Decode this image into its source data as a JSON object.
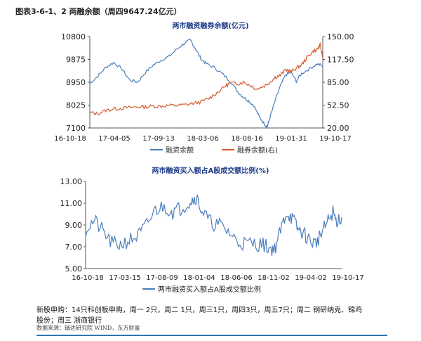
{
  "figure": {
    "caption": "图表3-6-1、2 两融余额（周四9647.24亿元）"
  },
  "chart_data": [
    {
      "type": "line",
      "title": "两市融资融券余额(亿元)",
      "x_ticks": [
        "16-10-18",
        "17-04-05",
        "17-09-13",
        "18-03-06",
        "18-08-16",
        "19-01-31",
        "19-10-17"
      ],
      "y_left": {
        "ticks": [
          7100,
          8025,
          8950,
          9875,
          10800
        ],
        "lim": [
          7100,
          10800
        ]
      },
      "y_right": {
        "ticks": [
          "20.00",
          "52.50",
          "85.00",
          "117.50",
          "150.00"
        ],
        "lim": [
          20,
          150
        ]
      },
      "grid": false,
      "legend": "bottom",
      "series": [
        {
          "name": "融资余额",
          "axis": "left",
          "color": "#4a7ebb",
          "points": [
            [
              0,
              8900
            ],
            [
              3,
              9200
            ],
            [
              6,
              9550
            ],
            [
              9,
              9750
            ],
            [
              12,
              9500
            ],
            [
              15,
              9050
            ],
            [
              18,
              8950
            ],
            [
              21,
              9350
            ],
            [
              24,
              9650
            ],
            [
              27,
              9850
            ],
            [
              30,
              10000
            ],
            [
              33,
              10300
            ],
            [
              36,
              10550
            ],
            [
              38,
              10650
            ],
            [
              40,
              10300
            ],
            [
              42,
              9900
            ],
            [
              44,
              9700
            ],
            [
              47,
              9550
            ],
            [
              50,
              9300
            ],
            [
              53,
              9000
            ],
            [
              56,
              8550
            ],
            [
              58,
              8350
            ],
            [
              60,
              8200
            ],
            [
              62,
              8000
            ],
            [
              64,
              7550
            ],
            [
              66,
              7250
            ],
            [
              67,
              7150
            ],
            [
              68,
              7500
            ],
            [
              70,
              8200
            ],
            [
              72,
              8800
            ],
            [
              74,
              9250
            ],
            [
              76,
              9350
            ],
            [
              78,
              9000
            ],
            [
              80,
              9300
            ],
            [
              83,
              9500
            ],
            [
              86,
              9700
            ],
            [
              88,
              9600
            ]
          ]
        },
        {
          "name": "融券余额(右)",
          "axis": "right",
          "color": "#d55a2b",
          "points": [
            [
              0,
              42
            ],
            [
              3,
              40
            ],
            [
              6,
              45
            ],
            [
              9,
              47
            ],
            [
              12,
              48
            ],
            [
              15,
              49
            ],
            [
              18,
              50
            ],
            [
              21,
              50
            ],
            [
              24,
              51
            ],
            [
              27,
              51
            ],
            [
              30,
              52
            ],
            [
              33,
              52
            ],
            [
              36,
              53
            ],
            [
              39,
              55
            ],
            [
              42,
              57
            ],
            [
              45,
              62
            ],
            [
              48,
              70
            ],
            [
              51,
              79
            ],
            [
              53,
              84
            ],
            [
              56,
              83
            ],
            [
              58,
              85
            ],
            [
              61,
              80
            ],
            [
              63,
              75
            ],
            [
              66,
              80
            ],
            [
              68,
              85
            ],
            [
              70,
              92
            ],
            [
              72,
              95
            ],
            [
              74,
              103
            ],
            [
              76,
              100
            ],
            [
              78,
              105
            ],
            [
              80,
              110
            ],
            [
              82,
              120
            ],
            [
              84,
              128
            ],
            [
              86,
              132
            ],
            [
              87,
              138
            ],
            [
              88,
              120
            ]
          ]
        }
      ]
    },
    {
      "type": "line",
      "title": "两市融资买入额占A股成交额比例(%)",
      "x_ticks": [
        "16-10-18",
        "17-03-15",
        "17-08-09",
        "18-01-04",
        "18-06-06",
        "18-11-02",
        "19-04-02",
        "19-10-17"
      ],
      "y": {
        "ticks": [
          "5.00",
          "7.00",
          "9.00",
          "11.00",
          "13.00"
        ],
        "lim": [
          5,
          13
        ]
      },
      "grid": false,
      "legend": "bottom",
      "series": [
        {
          "name": "两市融资买入额占A股成交额比例",
          "color": "#4a7ebb",
          "points": [
            [
              0,
              8.6
            ],
            [
              3,
              9.4
            ],
            [
              6,
              8.4
            ],
            [
              9,
              7.3
            ],
            [
              12,
              7.2
            ],
            [
              15,
              7.6
            ],
            [
              18,
              8.0
            ],
            [
              21,
              9.0
            ],
            [
              24,
              10.4
            ],
            [
              27,
              10.7
            ],
            [
              30,
              10.2
            ],
            [
              33,
              10.6
            ],
            [
              36,
              11.2
            ],
            [
              38,
              11.6
            ],
            [
              40,
              10.3
            ],
            [
              43,
              9.2
            ],
            [
              46,
              9.0
            ],
            [
              49,
              8.4
            ],
            [
              52,
              7.5
            ],
            [
              55,
              7.3
            ],
            [
              58,
              7.3
            ],
            [
              61,
              7.2
            ],
            [
              63,
              6.9
            ],
            [
              65,
              6.8
            ],
            [
              67,
              8.5
            ],
            [
              69,
              10.2
            ],
            [
              71,
              9.6
            ],
            [
              73,
              8.6
            ],
            [
              75,
              8.2
            ],
            [
              77,
              7.6
            ],
            [
              79,
              7.3
            ],
            [
              81,
              8.2
            ],
            [
              83,
              9.2
            ],
            [
              85,
              10.2
            ],
            [
              86,
              9.4
            ],
            [
              88,
              9.7
            ]
          ]
        }
      ]
    }
  ],
  "note": {
    "line1": "新股申购：14只科创板申购，周一 2只，周二 1只，周三1只，周四3只，周五7只；周二 钢研纳克、锦鸡",
    "line2": "股份；周三 浙商银行",
    "source": "数据来源：瑞达研究院  WIND，东方财富"
  }
}
